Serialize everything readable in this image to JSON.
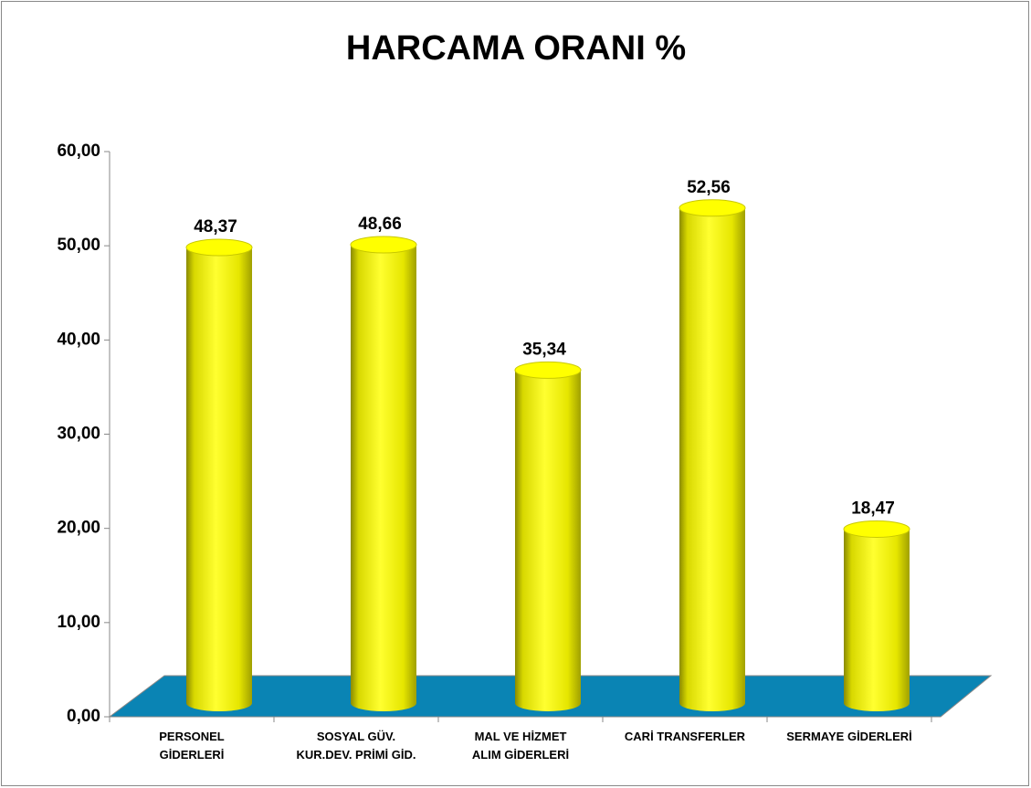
{
  "chart_data": {
    "type": "cylinder_bar",
    "title": "HARCAMA ORANI %",
    "categories": [
      "PERSONEL\nGİDERLERİ",
      "SOSYAL GÜV.\nKUR.DEV. PRİMİ GİD.",
      "MAL VE HİZMET\nALIM GİDERLERİ",
      "CARİ TRANSFERLER",
      "SERMAYE GİDERLERİ"
    ],
    "values": [
      48.37,
      48.66,
      35.34,
      52.56,
      18.47
    ],
    "value_labels": [
      "48,37",
      "48,66",
      "35,34",
      "52,56",
      "18,47"
    ],
    "color": "#ffff00",
    "floor_color": "#0a84b4",
    "ylim": [
      0,
      60
    ],
    "yticks": [
      {
        "value": 0,
        "label": "0,00"
      },
      {
        "value": 10,
        "label": "10,00"
      },
      {
        "value": 20,
        "label": "20,00"
      },
      {
        "value": 30,
        "label": "30,00"
      },
      {
        "value": 40,
        "label": "40,00"
      },
      {
        "value": 50,
        "label": "50,00"
      },
      {
        "value": 60,
        "label": "60,00"
      }
    ]
  }
}
